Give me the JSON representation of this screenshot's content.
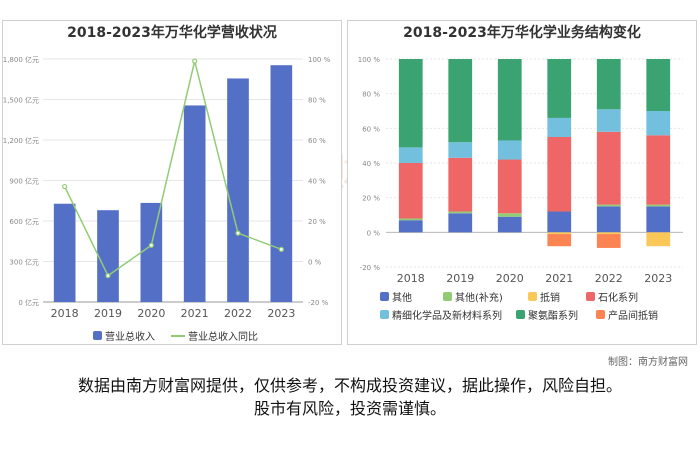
{
  "watermark": "南方财富网",
  "credit": "制图：南方财富网",
  "disclaimer": [
    "数据由南方财富网提供，仅供参考，不构成投资建议，据此操作，风险自担。",
    "股市有风险，投资需谨慎。"
  ],
  "chart_data": [
    {
      "type": "bar",
      "title": "2018-2023年万华化学营收状况",
      "categories": [
        "2018",
        "2019",
        "2020",
        "2021",
        "2022",
        "2023"
      ],
      "y_ticks_left": [
        "0 亿元",
        "300 亿元",
        "600 亿元",
        "900 亿元",
        "1,200 亿元",
        "1,500 亿元",
        "1,800 亿元"
      ],
      "y_ticks_right": [
        "-20 %",
        "0 %",
        "20 %",
        "40 %",
        "60 %",
        "80 %",
        "100 %"
      ],
      "ylim_left": [
        0,
        1800
      ],
      "ylim_right": [
        -20,
        100
      ],
      "series": [
        {
          "name": "营业总收入",
          "kind": "bar",
          "axis": "left",
          "color": "#5470c6",
          "values": [
            728,
            680,
            734,
            1456,
            1656,
            1754
          ]
        },
        {
          "name": "营业总收入同比",
          "kind": "line",
          "axis": "right",
          "color": "#91cc75",
          "values": [
            37,
            -7,
            8,
            99,
            14,
            6
          ]
        }
      ],
      "legend_position": "bottom"
    },
    {
      "type": "bar",
      "stacked": true,
      "title": "2018-2023年万华化学业务结构变化",
      "categories": [
        "2018",
        "2019",
        "2020",
        "2021",
        "2022",
        "2023"
      ],
      "y_ticks": [
        "-20 %",
        "0 %",
        "20 %",
        "40 %",
        "60 %",
        "80 %",
        "100 %"
      ],
      "ylim": [
        -20,
        100
      ],
      "series": [
        {
          "name": "其他",
          "color": "#5470c6",
          "values": [
            7,
            11,
            9,
            12,
            15,
            15
          ]
        },
        {
          "name": "其他(补充)",
          "color": "#91cc75",
          "values": [
            1,
            1,
            2,
            0,
            1,
            1
          ]
        },
        {
          "name": "抵销",
          "color": "#fac858",
          "values": [
            0,
            0,
            0,
            -1,
            -1,
            -8
          ]
        },
        {
          "name": "石化系列",
          "color": "#ee6666",
          "values": [
            32,
            31,
            31,
            43,
            42,
            40
          ]
        },
        {
          "name": "精细化学品及新材料系列",
          "color": "#73c0de",
          "values": [
            9,
            9,
            11,
            11,
            13,
            14
          ]
        },
        {
          "name": "聚氨酯系列",
          "color": "#3ba272",
          "values": [
            51,
            48,
            47,
            34,
            29,
            30
          ]
        },
        {
          "name": "产品间抵销",
          "color": "#fc8452",
          "values": [
            0,
            0,
            0,
            -7,
            -8,
            0
          ]
        }
      ],
      "legend_position": "bottom"
    }
  ]
}
